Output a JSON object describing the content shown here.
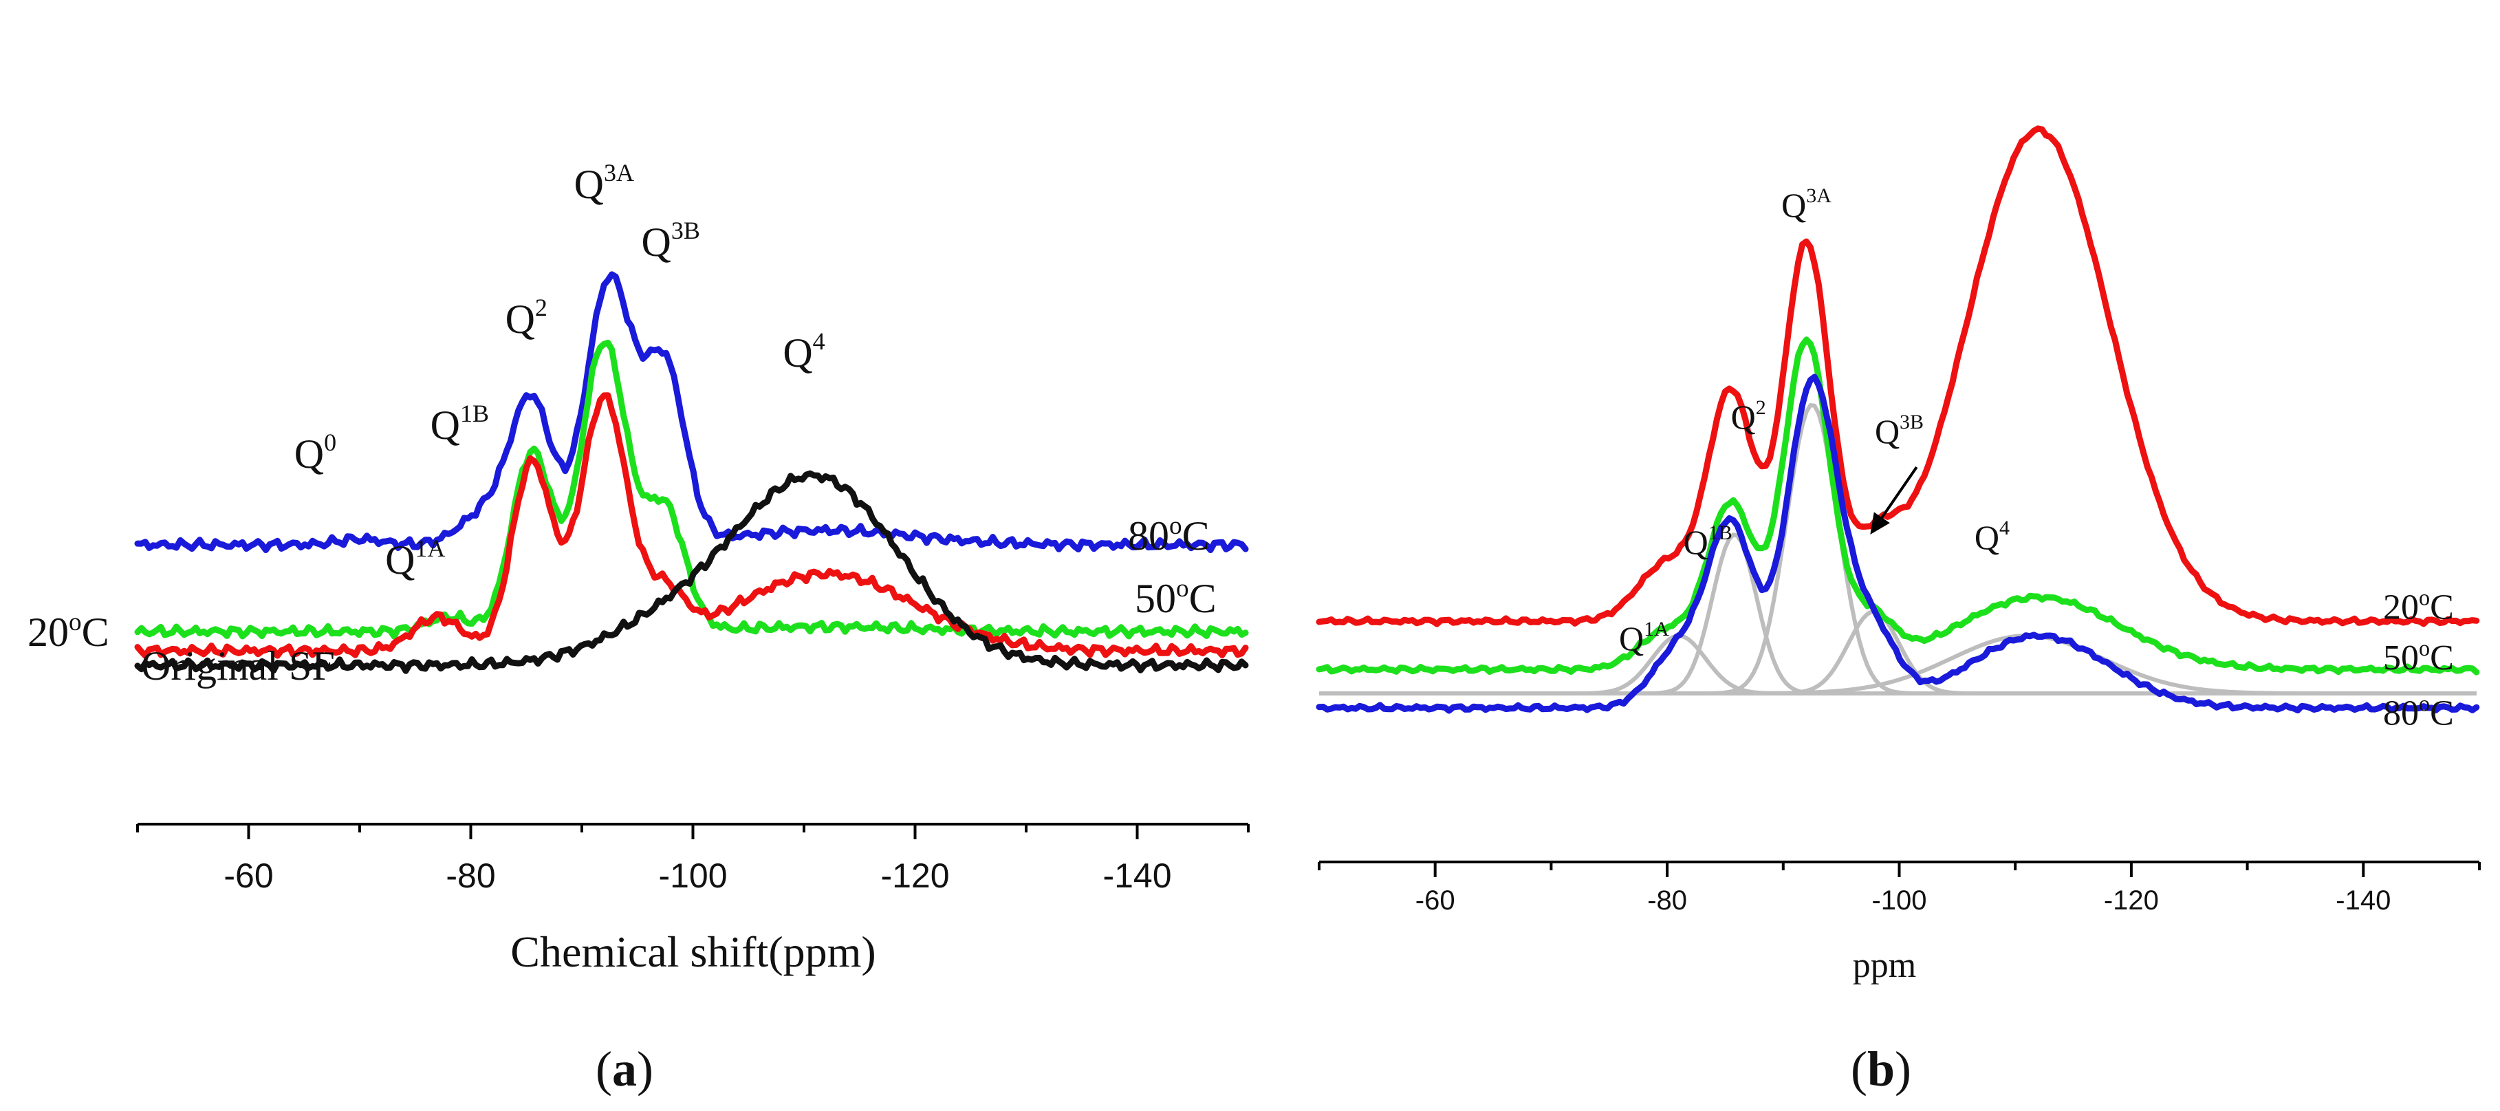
{
  "chart_data": [
    {
      "panel": "a",
      "panel_label": "a",
      "type": "line",
      "xlabel": "Chemical shift(ppm)",
      "xlim": [
        -50,
        -150
      ],
      "xticks": [
        -60,
        -80,
        -100,
        -120,
        -140
      ],
      "xticklabels": [
        "-60",
        "-80",
        "-100",
        "-120",
        "-140"
      ],
      "series": [
        {
          "name": "80oC",
          "label_text": "80",
          "label_sup": "o",
          "label_tail": "C",
          "color": "#1a1adb",
          "baseline": 0.58,
          "peaks": [
            [
              -70,
              0.012,
              2
            ],
            [
              -80,
              0.03,
              2
            ],
            [
              -82.5,
              0.06,
              2
            ],
            [
              -85.5,
              0.29,
              1.8
            ],
            [
              -92.5,
              0.55,
              2.1
            ],
            [
              -97.5,
              0.36,
              1.8
            ],
            [
              -112,
              0.03,
              8
            ]
          ]
        },
        {
          "name": "50oC",
          "label_text": "50",
          "label_sup": "o",
          "label_tail": "C",
          "color": "#1de01d",
          "baseline": 0.4,
          "peaks": [
            [
              -78,
              0.03,
              2
            ],
            [
              -85.5,
              0.37,
              1.8
            ],
            [
              -92,
              0.6,
              2.1
            ],
            [
              -97.5,
              0.25,
              1.8
            ],
            [
              -112,
              0.01,
              8
            ]
          ]
        },
        {
          "name": "20oC",
          "label_text": "20",
          "label_sup": "o",
          "label_tail": "C",
          "color": "#ee1111",
          "baseline": 0.36,
          "peaks": [
            [
              -77,
              0.07,
              2.2
            ],
            [
              -85.5,
              0.39,
              1.8
            ],
            [
              -92,
              0.52,
              2.1
            ],
            [
              -97.5,
              0.1,
              1.8
            ],
            [
              -112,
              0.16,
              8
            ]
          ]
        },
        {
          "name": "Original SF",
          "label_text": "Original SF",
          "color": "#111111",
          "baseline": 0.33,
          "peaks": [
            [
              -97,
              0.06,
              6
            ],
            [
              -111,
              0.39,
              7.5
            ]
          ]
        }
      ],
      "annotations": [
        {
          "base": "Q",
          "sup": "0",
          "x": -66,
          "y": 0.74
        },
        {
          "base": "Q",
          "sup": "1B",
          "x": -79,
          "y": 0.8
        },
        {
          "base": "Q",
          "sup": "1A",
          "x": -75,
          "y": 0.52
        },
        {
          "base": "Q",
          "sup": "2",
          "x": -85,
          "y": 1.02
        },
        {
          "base": "Q",
          "sup": "3A",
          "x": -92,
          "y": 1.3
        },
        {
          "base": "Q",
          "sup": "3B",
          "x": -98,
          "y": 1.18
        },
        {
          "base": "Q",
          "sup": "4",
          "x": -110,
          "y": 0.95
        }
      ]
    },
    {
      "panel": "b",
      "panel_label": "b",
      "type": "line",
      "xlabel": "ppm",
      "xlim": [
        -50,
        -150
      ],
      "xticks": [
        -60,
        -80,
        -100,
        -120,
        -140
      ],
      "xticklabels": [
        "-60",
        "-80",
        "-100",
        "-120",
        "-140"
      ],
      "series": [
        {
          "name": "20oC",
          "label_text": "20",
          "label_sup": "o",
          "label_tail": "C",
          "color": "#ee1111",
          "baseline": 0.5,
          "peaks": [
            [
              -80,
              0.12,
              2.5
            ],
            [
              -85.5,
              0.47,
              2
            ],
            [
              -92,
              0.78,
              2
            ],
            [
              -98,
              0.12,
              2
            ],
            [
              -112,
              1.02,
              6.2
            ]
          ]
        },
        {
          "name": "50oC",
          "label_text": "50",
          "label_sup": "o",
          "label_tail": "C",
          "color": "#1de01d",
          "baseline": 0.4,
          "peaks": [
            [
              -80,
              0.08,
              2.4
            ],
            [
              -85.5,
              0.34,
              2
            ],
            [
              -92,
              0.68,
              2
            ],
            [
              -97.5,
              0.1,
              2
            ],
            [
              -112,
              0.15,
              7
            ]
          ]
        },
        {
          "name": "80oC",
          "label_text": "80",
          "label_sup": "o",
          "label_tail": "C",
          "color": "#1a1adb",
          "baseline": 0.32,
          "peaks": [
            [
              -81,
              0.12,
              2.3
            ],
            [
              -85.5,
              0.37,
              2
            ],
            [
              -92.5,
              0.67,
              2.2
            ],
            [
              -97.5,
              0.16,
              2.2
            ],
            [
              -112,
              0.15,
              6
            ]
          ]
        },
        {
          "name": "Q1A fit",
          "color": "#bdbdbd",
          "fit": true,
          "baseline": 0.35,
          "peaks": [
            [
              -81,
              0.12,
              2.3
            ]
          ]
        },
        {
          "name": "Q1B fit",
          "color": "#bdbdbd",
          "fit": true,
          "baseline": 0.35,
          "peaks": [
            [
              -85.8,
              0.33,
              1.9
            ]
          ]
        },
        {
          "name": "Q2-Q3A fit",
          "color": "#bdbdbd",
          "fit": true,
          "baseline": 0.35,
          "peaks": [
            [
              -92.5,
              0.6,
              2.2
            ]
          ]
        },
        {
          "name": "Q3B fit",
          "color": "#bdbdbd",
          "fit": true,
          "baseline": 0.35,
          "peaks": [
            [
              -97.8,
              0.17,
              2.2
            ]
          ]
        },
        {
          "name": "Q4 fit",
          "color": "#bdbdbd",
          "fit": true,
          "baseline": 0.35,
          "peaks": [
            [
              -111,
              0.12,
              6.5
            ]
          ]
        }
      ],
      "annotations": [
        {
          "base": "Q",
          "sup": "1A",
          "x": -78,
          "y": 0.44
        },
        {
          "base": "Q",
          "sup": "1B",
          "x": -83.5,
          "y": 0.64
        },
        {
          "base": "Q",
          "sup": "2",
          "x": -87,
          "y": 0.9
        },
        {
          "base": "Q",
          "sup": "3A",
          "x": -92,
          "y": 1.34
        },
        {
          "base": "Q",
          "sup": "3B",
          "x": -100,
          "y": 0.87
        },
        {
          "base": "Q",
          "sup": "4",
          "x": -108,
          "y": 0.65
        }
      ],
      "arrow": {
        "from": [
          -101.5,
          0.82
        ],
        "to": [
          -97.5,
          0.68
        ]
      }
    }
  ]
}
